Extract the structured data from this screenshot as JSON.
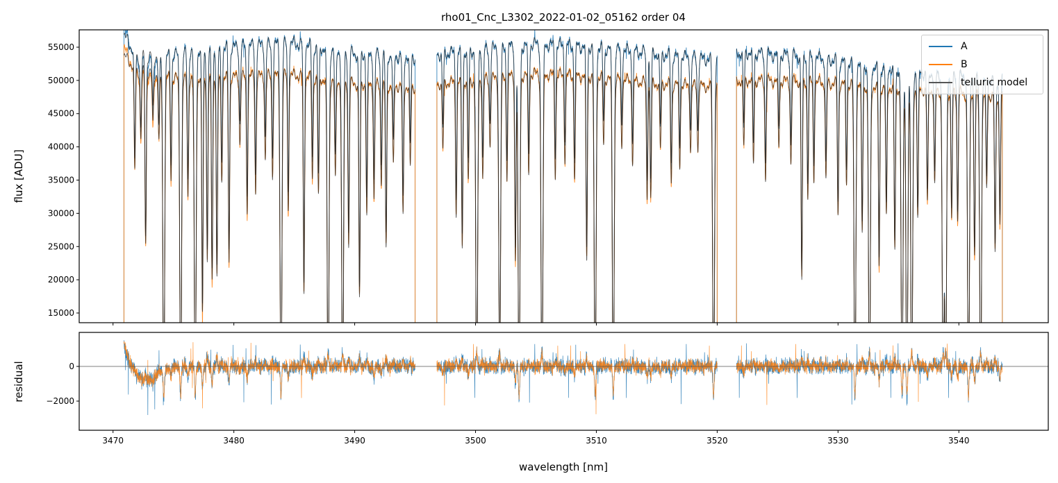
{
  "chart_data": {
    "type": "line",
    "title": "rho01_Cnc_L3302_2022-01-02_05162  order 04",
    "xlabel": "wavelength [nm]",
    "ylabel_top": "flux [ADU]",
    "ylabel_bottom": "residual",
    "xlim": [
      3467.2,
      3547.4
    ],
    "ylim_top": [
      13540,
      57610
    ],
    "ylim_bottom": [
      -3680,
      1960
    ],
    "xticks": [
      3470,
      3480,
      3490,
      3500,
      3510,
      3520,
      3530,
      3540
    ],
    "yticks_top": [
      15000,
      20000,
      25000,
      30000,
      35000,
      40000,
      45000,
      50000,
      55000
    ],
    "yticks_bottom": [
      -2000,
      0
    ],
    "legend": {
      "position": "top-right",
      "entries": [
        "A",
        "B",
        "telluric model"
      ]
    },
    "colors": {
      "A": "#1f77b4",
      "B": "#ff7f0e",
      "model": "#222222",
      "zero": "#555555"
    },
    "segments": [
      [
        3470.9,
        3495.0
      ],
      [
        3496.8,
        3520.0
      ],
      [
        3521.6,
        3543.6
      ]
    ],
    "continuum_A": [
      [
        3471,
        56500
      ],
      [
        3472,
        53500
      ],
      [
        3476,
        54000
      ],
      [
        3480,
        55000
      ],
      [
        3485,
        55600
      ],
      [
        3490,
        54000
      ],
      [
        3495,
        53500
      ],
      [
        3497,
        54000
      ],
      [
        3500,
        54500
      ],
      [
        3505,
        55500
      ],
      [
        3510,
        55000
      ],
      [
        3515,
        54000
      ],
      [
        3520,
        53000
      ],
      [
        3522,
        54200
      ],
      [
        3528,
        53500
      ],
      [
        3533,
        52000
      ],
      [
        3538,
        51000
      ],
      [
        3543.6,
        50000
      ]
    ],
    "continuum_B": [
      [
        3471,
        53500
      ],
      [
        3472,
        51500
      ],
      [
        3476,
        50000
      ],
      [
        3480,
        50500
      ],
      [
        3485,
        50800
      ],
      [
        3490,
        49500
      ],
      [
        3495,
        49000
      ],
      [
        3497,
        49500
      ],
      [
        3500,
        50000
      ],
      [
        3505,
        51000
      ],
      [
        3510,
        50500
      ],
      [
        3515,
        49500
      ],
      [
        3520,
        49000
      ],
      [
        3522,
        50000
      ],
      [
        3528,
        49800
      ],
      [
        3533,
        49000
      ],
      [
        3538,
        48500
      ],
      [
        3543.6,
        47500
      ]
    ],
    "absorption_lines": [
      [
        3471.8,
        0.3
      ],
      [
        3472.3,
        0.2
      ],
      [
        3472.7,
        0.5
      ],
      [
        3473.3,
        0.15
      ],
      [
        3473.8,
        0.2
      ],
      [
        3474.2,
        1
      ],
      [
        3474.8,
        0.3
      ],
      [
        3475.6,
        1
      ],
      [
        3476.2,
        0.35
      ],
      [
        3476.8,
        1
      ],
      [
        3477.4,
        0.7
      ],
      [
        3477.8,
        0.55
      ],
      [
        3478.2,
        0.6
      ],
      [
        3478.6,
        0.6
      ],
      [
        3479.0,
        0.3
      ],
      [
        3479.6,
        0.55
      ],
      [
        3480.5,
        0.2
      ],
      [
        3481.1,
        0.4
      ],
      [
        3481.8,
        0.35
      ],
      [
        3482.6,
        0.25
      ],
      [
        3483.2,
        0.3
      ],
      [
        3483.9,
        1
      ],
      [
        3484.5,
        0.4
      ],
      [
        3485.8,
        0.65
      ],
      [
        3486.5,
        0.3
      ],
      [
        3487.0,
        0.35
      ],
      [
        3487.8,
        1
      ],
      [
        3488.4,
        0.3
      ],
      [
        3489.0,
        1
      ],
      [
        3489.5,
        0.5
      ],
      [
        3490.4,
        0.65
      ],
      [
        3491.0,
        0.4
      ],
      [
        3491.6,
        0.35
      ],
      [
        3492.2,
        0.3
      ],
      [
        3492.6,
        0.5
      ],
      [
        3493.2,
        0.25
      ],
      [
        3494.0,
        0.4
      ],
      [
        3494.6,
        0.25
      ],
      [
        3497.3,
        0.2
      ],
      [
        3498.4,
        0.4
      ],
      [
        3498.9,
        0.5
      ],
      [
        3499.4,
        0.3
      ],
      [
        3500.1,
        1
      ],
      [
        3500.6,
        0.3
      ],
      [
        3501.2,
        0.2
      ],
      [
        3502.0,
        0.9
      ],
      [
        3502.6,
        0.3
      ],
      [
        3503.3,
        0.55
      ],
      [
        3503.6,
        1
      ],
      [
        3504.4,
        0.3
      ],
      [
        3505.5,
        1
      ],
      [
        3506.6,
        0.3
      ],
      [
        3507.4,
        0.25
      ],
      [
        3508.2,
        0.3
      ],
      [
        3509.2,
        0.55
      ],
      [
        3509.9,
        1
      ],
      [
        3510.6,
        0.2
      ],
      [
        3511.4,
        1
      ],
      [
        3512.1,
        0.2
      ],
      [
        3513.0,
        0.25
      ],
      [
        3514.2,
        0.35
      ],
      [
        3514.5,
        0.35
      ],
      [
        3515.3,
        0.2
      ],
      [
        3516.2,
        0.3
      ],
      [
        3516.9,
        0.25
      ],
      [
        3517.8,
        0.2
      ],
      [
        3518.4,
        0.2
      ],
      [
        3519.7,
        1
      ],
      [
        3522.2,
        0.2
      ],
      [
        3523.0,
        0.25
      ],
      [
        3524.0,
        0.3
      ],
      [
        3525.1,
        0.2
      ],
      [
        3526.1,
        0.25
      ],
      [
        3527.0,
        0.6
      ],
      [
        3527.5,
        0.35
      ],
      [
        3528.0,
        0.3
      ],
      [
        3529.0,
        0.3
      ],
      [
        3530.0,
        0.4
      ],
      [
        3530.7,
        0.3
      ],
      [
        3531.4,
        1
      ],
      [
        3532.0,
        0.45
      ],
      [
        3532.6,
        1
      ],
      [
        3533.4,
        0.55
      ],
      [
        3534.0,
        0.4
      ],
      [
        3534.7,
        0.5
      ],
      [
        3535.3,
        1
      ],
      [
        3535.7,
        1
      ],
      [
        3536.1,
        1
      ],
      [
        3536.6,
        0.4
      ],
      [
        3537.4,
        0.35
      ],
      [
        3538.0,
        0.3
      ],
      [
        3538.7,
        1
      ],
      [
        3538.9,
        1
      ],
      [
        3539.4,
        0.4
      ],
      [
        3539.9,
        0.4
      ],
      [
        3540.8,
        1
      ],
      [
        3541.3,
        0.5
      ],
      [
        3541.8,
        1
      ],
      [
        3542.3,
        0.3
      ],
      [
        3543.0,
        0.5
      ],
      [
        3543.4,
        0.4
      ]
    ]
  }
}
